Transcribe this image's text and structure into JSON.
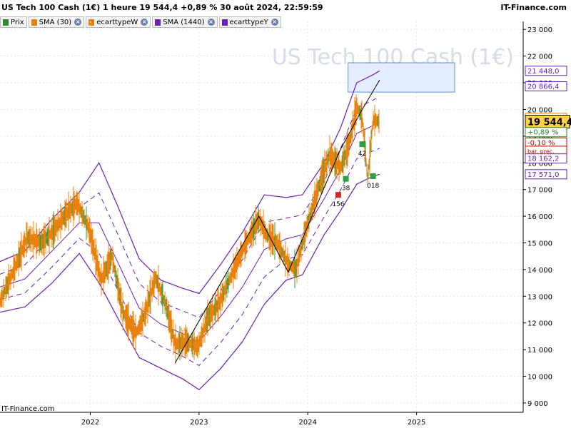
{
  "header": {
    "title": "US Tech 100 Cash (1€) 1 heure 19 544,4 +0,89 % 30 août 2024, 22:59:59",
    "brand": "IT-Finance.com"
  },
  "legend": [
    {
      "label": "Prix",
      "color": "#2e8b2e",
      "closable": false
    },
    {
      "label": "SMA (30)",
      "color": "#e8820c",
      "closable": true
    },
    {
      "label": "ecarttypeW",
      "color": "#e8820c",
      "closable": true
    },
    {
      "label": "SMA (1440)",
      "color": "#6a1fb5",
      "closable": true
    },
    {
      "label": "ecarttypeY",
      "color": "#6a1fb5",
      "closable": true
    }
  ],
  "watermark": "US Tech 100 Cash (1€)",
  "footer_brand": "IT-Finance.com",
  "colors": {
    "price": "#e8820c",
    "band": "#6a1fb5",
    "trend": "#000000",
    "box": "#dde8ff",
    "up": "#2ea043",
    "down": "#d62828"
  },
  "chart_data": {
    "type": "line",
    "x_ticks": [
      "2022",
      "2023",
      "2024",
      "2025"
    ],
    "y_ticks": [
      "23 000",
      "22 000",
      "21 000",
      "20 000",
      "19 000",
      "18 000",
      "17 000",
      "16 000",
      "15 000",
      "14 000",
      "13 000",
      "12 000",
      "11 000",
      "10 000",
      "9 000"
    ],
    "y_tick_values": [
      23000,
      22000,
      21000,
      20000,
      19000,
      18000,
      17000,
      16000,
      15000,
      14000,
      13000,
      12000,
      11000,
      10000,
      9000
    ],
    "ylim": [
      8650,
      23300
    ],
    "xlim": [
      2021.17,
      2025.98
    ],
    "price": {
      "x": [
        2021.17,
        2021.3,
        2021.42,
        2021.55,
        2021.65,
        2021.78,
        2021.88,
        2021.99,
        2022.1,
        2022.2,
        2022.3,
        2022.42,
        2022.5,
        2022.6,
        2022.7,
        2022.78,
        2022.88,
        2022.99,
        2023.08,
        2023.18,
        2023.3,
        2023.42,
        2023.55,
        2023.62,
        2023.72,
        2023.82,
        2023.89,
        2023.99,
        2024.1,
        2024.2,
        2024.3,
        2024.38,
        2024.45,
        2024.5,
        2024.55,
        2024.6,
        2024.66
      ],
      "y": [
        12800,
        14000,
        15200,
        15000,
        15400,
        16100,
        16500,
        15500,
        13600,
        14500,
        12400,
        11600,
        12300,
        13700,
        12600,
        11200,
        11300,
        11100,
        12200,
        12700,
        13800,
        14900,
        15900,
        15300,
        15000,
        14200,
        14000,
        15600,
        17100,
        18300,
        17800,
        18700,
        20100,
        19700,
        17400,
        19600,
        19544
      ]
    },
    "sma_upper_outer": {
      "x": [
        2021.17,
        2021.4,
        2021.65,
        2021.9,
        2022.08,
        2022.25,
        2022.45,
        2022.65,
        2022.85,
        2023.0,
        2023.2,
        2023.4,
        2023.6,
        2023.8,
        2023.95,
        2024.15,
        2024.3,
        2024.45,
        2024.6,
        2024.66
      ],
      "y": [
        14300,
        14700,
        15900,
        16900,
        18000,
        16400,
        14400,
        13600,
        13300,
        13100,
        14200,
        15400,
        16800,
        16700,
        16800,
        18000,
        19300,
        21000,
        21300,
        21448
      ]
    },
    "sma_lower_outer": {
      "x": [
        2021.17,
        2021.4,
        2021.65,
        2021.9,
        2022.08,
        2022.25,
        2022.45,
        2022.65,
        2022.85,
        2023.0,
        2023.2,
        2023.4,
        2023.6,
        2023.8,
        2023.95,
        2024.15,
        2024.3,
        2024.45,
        2024.6,
        2024.66
      ],
      "y": [
        12400,
        12600,
        13500,
        14600,
        13500,
        12200,
        10700,
        10300,
        9900,
        9500,
        10300,
        11300,
        12700,
        13600,
        13800,
        15300,
        16200,
        17200,
        17500,
        17571
      ]
    },
    "trendlines": [
      {
        "x": [
          2022.78,
          2023.55,
          2023.82,
          2024.3,
          2024.5,
          2024.66
        ],
        "y": [
          10500,
          16000,
          13900,
          18500,
          20000,
          21100
        ]
      }
    ],
    "markers": [
      {
        "label": "156",
        "x": 2024.28,
        "y": 16800,
        "dir": "down"
      },
      {
        "label": "38",
        "x": 2024.35,
        "y": 17400,
        "dir": "up"
      },
      {
        "label": "42",
        "x": 2024.5,
        "y": 18700,
        "dir": "up"
      },
      {
        "label": "018",
        "x": 2024.6,
        "y": 17500,
        "dir": "up"
      }
    ],
    "box": {
      "x": [
        2024.37,
        2025.35
      ],
      "y": [
        20650,
        21750
      ]
    },
    "price_labels": [
      {
        "text": "21 448,0",
        "y": 21448,
        "color": "#6a1fb5",
        "bg": "#ffffff"
      },
      {
        "text": "20 866,4",
        "y": 20866,
        "color": "#6a1fb5",
        "bg": "#ffffff"
      },
      {
        "text": "19 687,3",
        "y": 19687,
        "color": "#e8820c",
        "bg": "#ffffff"
      },
      {
        "text": "19 544,4",
        "y": 19544,
        "color": "#000000",
        "bg": "#ffd23f",
        "big": true
      },
      {
        "text": "+0,89 %",
        "y": 19150,
        "color": "#1f8a1f",
        "bg": "#ffffff"
      },
      {
        "text": "-0,10 %",
        "y": 18760,
        "color": "#cc0000",
        "bg": "#ffffff"
      },
      {
        "text": "bar. prec.",
        "y": 18450,
        "color": "#cc0000",
        "bg": "#ffffff",
        "small": true
      },
      {
        "text": "18 162,2",
        "y": 18162,
        "color": "#6a1fb5",
        "bg": "#ffffff"
      },
      {
        "text": "17 571,0",
        "y": 17571,
        "color": "#6a1fb5",
        "bg": "#ffffff"
      }
    ]
  }
}
